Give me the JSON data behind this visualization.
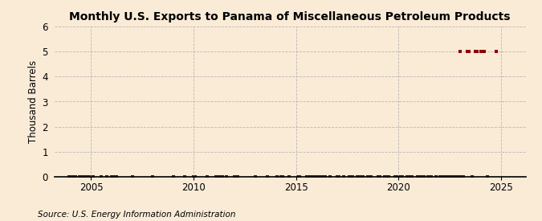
{
  "title": "Monthly U.S. Exports to Panama of Miscellaneous Petroleum Products",
  "ylabel": "Thousand Barrels",
  "source": "Source: U.S. Energy Information Administration",
  "xlim": [
    2003.2,
    2026.2
  ],
  "ylim": [
    0,
    6
  ],
  "yticks": [
    0,
    1,
    2,
    3,
    4,
    5,
    6
  ],
  "xticks": [
    2005,
    2010,
    2015,
    2020,
    2025
  ],
  "background_color": "#faebd7",
  "plot_bg_color": "#faebd7",
  "marker_color": "#8b0000",
  "grid_color": "#aaaaaa",
  "title_fontsize": 10,
  "label_fontsize": 8.5,
  "tick_fontsize": 8.5,
  "source_fontsize": 7.5,
  "data_points": [
    [
      2003.917,
      0
    ],
    [
      2004.083,
      0
    ],
    [
      2004.25,
      0
    ],
    [
      2004.417,
      0
    ],
    [
      2004.583,
      0
    ],
    [
      2004.75,
      0
    ],
    [
      2004.917,
      0
    ],
    [
      2005.0,
      0
    ],
    [
      2005.083,
      0
    ],
    [
      2005.5,
      0
    ],
    [
      2005.75,
      0
    ],
    [
      2006.0,
      0
    ],
    [
      2006.083,
      0
    ],
    [
      2006.25,
      0
    ],
    [
      2007.0,
      0
    ],
    [
      2008.0,
      0
    ],
    [
      2009.0,
      0
    ],
    [
      2009.583,
      0
    ],
    [
      2010.0,
      0
    ],
    [
      2010.083,
      0
    ],
    [
      2010.667,
      0
    ],
    [
      2011.083,
      0
    ],
    [
      2011.25,
      0
    ],
    [
      2011.417,
      0
    ],
    [
      2011.583,
      0
    ],
    [
      2012.0,
      0
    ],
    [
      2012.083,
      0
    ],
    [
      2012.167,
      0
    ],
    [
      2013.0,
      0
    ],
    [
      2013.583,
      0
    ],
    [
      2014.083,
      0
    ],
    [
      2014.25,
      0
    ],
    [
      2014.333,
      0
    ],
    [
      2014.667,
      0
    ],
    [
      2015.083,
      0
    ],
    [
      2015.167,
      0
    ],
    [
      2015.5,
      0
    ],
    [
      2015.583,
      0
    ],
    [
      2015.667,
      0
    ],
    [
      2015.75,
      0
    ],
    [
      2015.833,
      0
    ],
    [
      2016.0,
      0
    ],
    [
      2016.083,
      0
    ],
    [
      2016.167,
      0
    ],
    [
      2016.25,
      0
    ],
    [
      2016.333,
      0
    ],
    [
      2016.417,
      0
    ],
    [
      2016.667,
      0
    ],
    [
      2017.0,
      0
    ],
    [
      2017.083,
      0
    ],
    [
      2017.333,
      0
    ],
    [
      2017.583,
      0
    ],
    [
      2017.667,
      0
    ],
    [
      2017.75,
      0
    ],
    [
      2018.0,
      0
    ],
    [
      2018.083,
      0
    ],
    [
      2018.167,
      0
    ],
    [
      2018.25,
      0
    ],
    [
      2018.5,
      0
    ],
    [
      2018.583,
      0
    ],
    [
      2018.667,
      0
    ],
    [
      2019.0,
      0
    ],
    [
      2019.083,
      0
    ],
    [
      2019.333,
      0
    ],
    [
      2019.417,
      0
    ],
    [
      2019.5,
      0
    ],
    [
      2019.833,
      0
    ],
    [
      2020.0,
      0
    ],
    [
      2020.083,
      0
    ],
    [
      2020.167,
      0
    ],
    [
      2020.417,
      0
    ],
    [
      2020.5,
      0
    ],
    [
      2020.583,
      0
    ],
    [
      2020.667,
      0
    ],
    [
      2020.917,
      0
    ],
    [
      2021.0,
      0
    ],
    [
      2021.083,
      0
    ],
    [
      2021.167,
      0
    ],
    [
      2021.25,
      0
    ],
    [
      2021.417,
      0
    ],
    [
      2021.5,
      0
    ],
    [
      2021.583,
      0
    ],
    [
      2021.833,
      0
    ],
    [
      2022.0,
      0
    ],
    [
      2022.083,
      0
    ],
    [
      2022.167,
      0
    ],
    [
      2022.25,
      0
    ],
    [
      2022.333,
      0
    ],
    [
      2022.417,
      0
    ],
    [
      2022.5,
      0
    ],
    [
      2022.583,
      0
    ],
    [
      2022.667,
      0
    ],
    [
      2022.75,
      0
    ],
    [
      2022.833,
      0
    ],
    [
      2022.917,
      0
    ],
    [
      2023.0,
      5
    ],
    [
      2023.083,
      0
    ],
    [
      2023.167,
      0
    ],
    [
      2023.333,
      5
    ],
    [
      2023.417,
      5
    ],
    [
      2023.583,
      0
    ],
    [
      2023.75,
      5
    ],
    [
      2023.833,
      5
    ],
    [
      2024.0,
      5
    ],
    [
      2024.083,
      5
    ],
    [
      2024.167,
      5
    ],
    [
      2024.333,
      0
    ],
    [
      2024.75,
      5
    ]
  ]
}
